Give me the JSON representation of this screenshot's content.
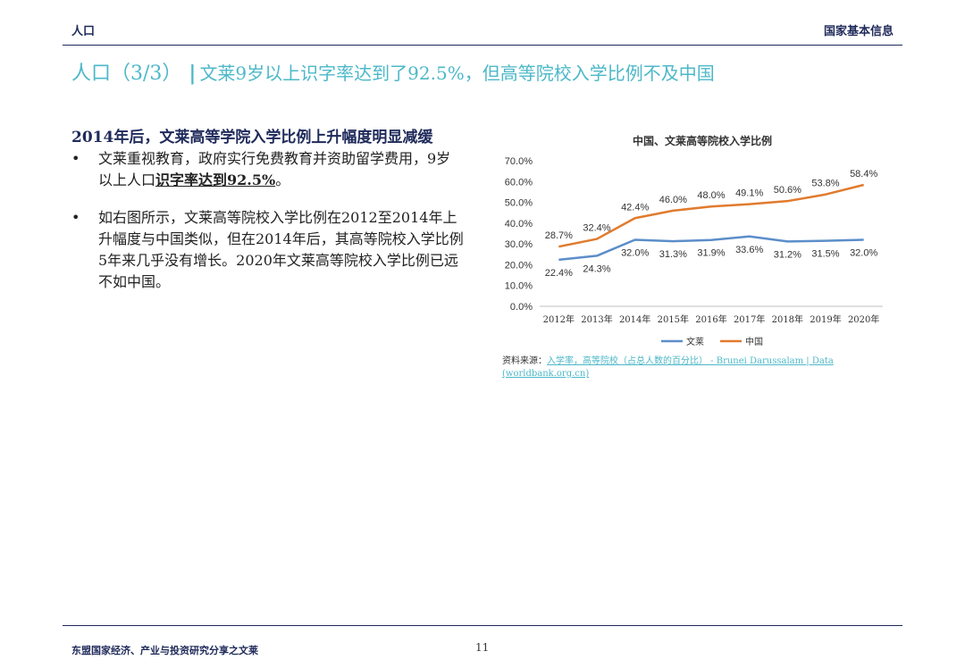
{
  "header": {
    "section": "人口",
    "category": "国家基本信息"
  },
  "title": {
    "main": "人口（3/3）",
    "separator": "|",
    "subtitle": "文莱9岁以上识字率达到了92.5%，但高等院校入学比例不及中国"
  },
  "left": {
    "heading": "2014年后，文莱高等学院入学比例上升幅度明显减缓",
    "bullet1_pre": "文莱重视教育，政府实行免费教育并资助留学费用，9岁以上人口",
    "bullet1_hl": "识字率达到92.5%",
    "bullet1_post": "。",
    "bullet2": "如右图所示，文莱高等院校入学比例在2012至2014年上升幅度与中国类似，但在2014年后，其高等院校入学比例5年来几乎没有增长。2020年文莱高等院校入学比例已远不如中国。",
    "bullet_symbol": "•"
  },
  "chart_data": {
    "type": "line",
    "title": "中国、文莱高等院校入学比例",
    "categories": [
      "2012年",
      "2013年",
      "2014年",
      "2015年",
      "2016年",
      "2017年",
      "2018年",
      "2019年",
      "2020年"
    ],
    "series": [
      {
        "name": "文莱",
        "color": "#5b8ec9",
        "values": [
          22.4,
          24.3,
          32.0,
          31.3,
          31.9,
          33.6,
          31.2,
          31.5,
          32.0
        ]
      },
      {
        "name": "中国",
        "color": "#e07b2e",
        "values": [
          28.7,
          32.4,
          42.4,
          46.0,
          48.0,
          49.1,
          50.6,
          53.8,
          58.4
        ]
      }
    ],
    "ylim": [
      0,
      70
    ],
    "yticks": [
      "0.0%",
      "10.0%",
      "20.0%",
      "30.0%",
      "40.0%",
      "50.0%",
      "60.0%",
      "70.0%"
    ],
    "grid": false,
    "legend": "bottom"
  },
  "source": {
    "label": "资料来源：",
    "link": "入学率，高等院校（占总人数的百分比） - Brunei Darussalam | Data (worldbank.org.cn)"
  },
  "footer": {
    "text": "东盟国家经济、产业与投资研究分享之文莱",
    "page": "11"
  }
}
